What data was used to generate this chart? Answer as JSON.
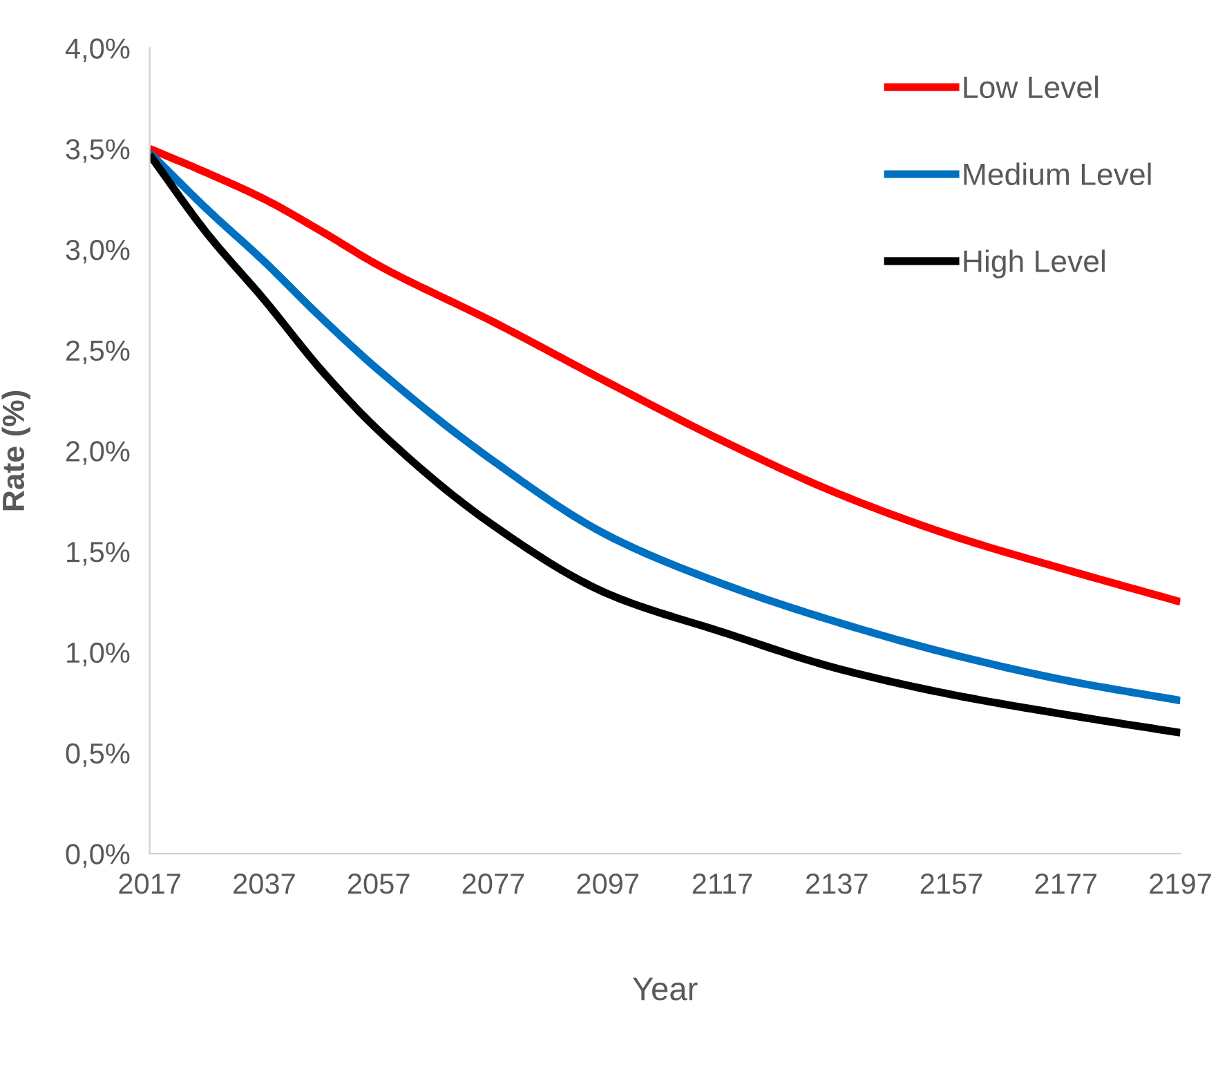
{
  "chart_data": {
    "type": "line",
    "xlabel": "Year",
    "ylabel": "Rate (%)",
    "x": [
      2017,
      2027,
      2037,
      2047,
      2057,
      2077,
      2097,
      2117,
      2137,
      2157,
      2177,
      2197
    ],
    "series": [
      {
        "name": "Low Level",
        "color": "#ff0000",
        "values": [
          3.5,
          3.38,
          3.25,
          3.09,
          2.92,
          2.64,
          2.34,
          2.05,
          1.79,
          1.58,
          1.41,
          1.25
        ]
      },
      {
        "name": "Medium Level",
        "color": "#0070c0",
        "values": [
          3.48,
          3.2,
          2.94,
          2.66,
          2.4,
          1.95,
          1.58,
          1.34,
          1.15,
          0.99,
          0.86,
          0.76
        ]
      },
      {
        "name": "High Level",
        "color": "#000000",
        "values": [
          3.47,
          3.08,
          2.75,
          2.4,
          2.1,
          1.63,
          1.29,
          1.1,
          0.92,
          0.79,
          0.69,
          0.6
        ]
      }
    ],
    "xlim": [
      2017,
      2197
    ],
    "xticks": [
      2017,
      2037,
      2057,
      2077,
      2097,
      2117,
      2137,
      2157,
      2177,
      2197
    ],
    "ylim": [
      0,
      4
    ],
    "yticks": [
      {
        "value": 0,
        "label": "0,0%"
      },
      {
        "value": 0.5,
        "label": "0,5%"
      },
      {
        "value": 1,
        "label": "1,0%"
      },
      {
        "value": 1.5,
        "label": "1,5%"
      },
      {
        "value": 2,
        "label": "2,0%"
      },
      {
        "value": 2.5,
        "label": "2,5%"
      },
      {
        "value": 3,
        "label": "3,0%"
      },
      {
        "value": 3.5,
        "label": "3,5%"
      },
      {
        "value": 4,
        "label": "4,0%"
      }
    ],
    "grid": false,
    "legend": "top right",
    "marker": "none",
    "line_style": "solid"
  }
}
